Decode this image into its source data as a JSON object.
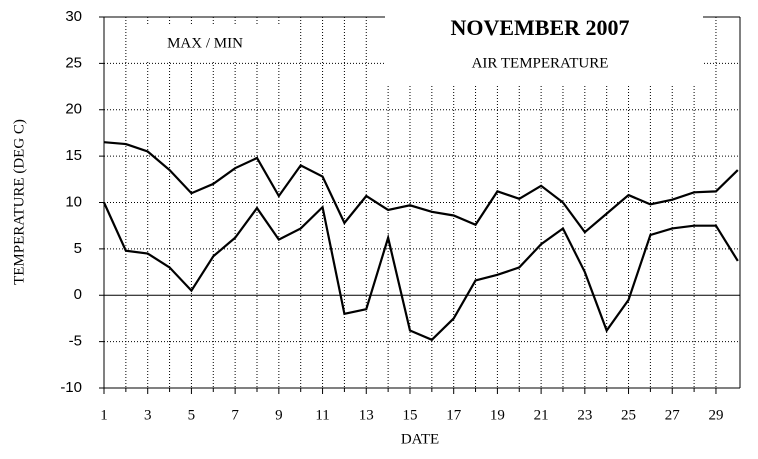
{
  "chart_data": {
    "type": "line",
    "title": "NOVEMBER 2007",
    "subtitle": "AIR TEMPERATURE",
    "annotation": "MAX / MIN",
    "xlabel": "DATE",
    "ylabel": "TEMPERATURE (DEG C)",
    "x": [
      1,
      2,
      3,
      4,
      5,
      6,
      7,
      8,
      9,
      10,
      11,
      12,
      13,
      14,
      15,
      16,
      17,
      18,
      19,
      20,
      21,
      22,
      23,
      24,
      25,
      26,
      27,
      28,
      29,
      30
    ],
    "series": [
      {
        "color": "#000000",
        "values": [
          16.5,
          16.3,
          15.5,
          13.5,
          11,
          12,
          13.7,
          14.8,
          10.7,
          14,
          12.8,
          7.8,
          10.7,
          9.2,
          9.7,
          9,
          8.6,
          7.6,
          11.2,
          10.4,
          11.8,
          10,
          6.8,
          8.8,
          10.8,
          9.8,
          10.3,
          11.1,
          11.2,
          13.5
        ]
      },
      {
        "color": "#000000",
        "values": [
          10,
          4.8,
          4.5,
          3,
          0.5,
          4.2,
          6.2,
          9.4,
          6,
          7.2,
          9.5,
          -2,
          -1.5,
          6.2,
          -3.8,
          -4.8,
          -2.5,
          1.6,
          2.2,
          3,
          5.5,
          7.2,
          2.5,
          -3.8,
          -0.5,
          6.5,
          7.2,
          7.5,
          7.5,
          3.7
        ]
      }
    ],
    "xlim": [
      1,
      30.1
    ],
    "xticks": [
      1,
      3,
      5,
      7,
      9,
      11,
      13,
      15,
      17,
      19,
      21,
      23,
      25,
      27,
      29
    ],
    "ylim": [
      -10,
      30
    ],
    "yticks": [
      -10,
      -5,
      0,
      5,
      10,
      15,
      20,
      25,
      30
    ],
    "grid": true
  }
}
